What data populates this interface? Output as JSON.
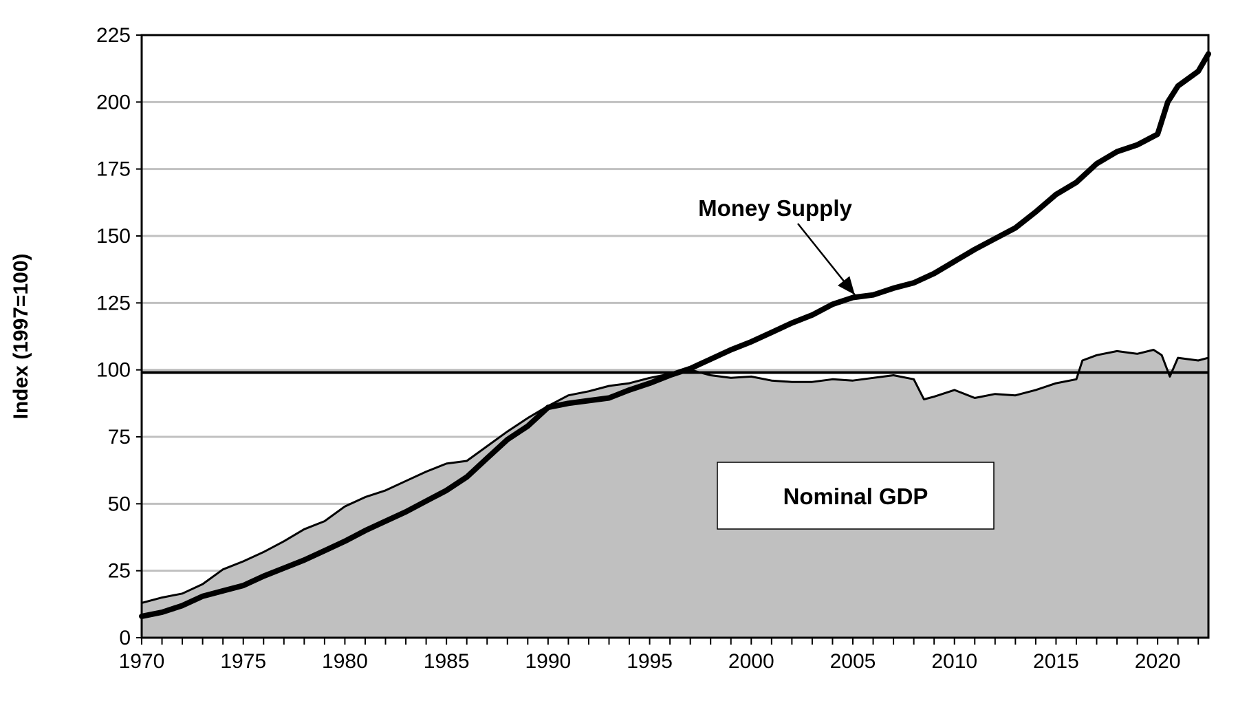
{
  "chart_data": {
    "type": "area",
    "title": "",
    "xlabel": "",
    "ylabel": "Index (1997=100)",
    "xlim": [
      1970,
      2022.5
    ],
    "ylim": [
      0,
      225
    ],
    "x_ticks": [
      "1970",
      "1975",
      "1980",
      "1985",
      "1990",
      "1995",
      "2000",
      "2005",
      "2010",
      "2015",
      "2020"
    ],
    "y_ticks": [
      "0",
      "25",
      "50",
      "75",
      "100",
      "125",
      "150",
      "175",
      "200",
      "225"
    ],
    "grid": "horizontal",
    "reference_line": 99,
    "annotations": [
      {
        "text": "Money Supply",
        "points_to": [
          2005.3,
          127
        ]
      },
      {
        "text": "Nominal GDP",
        "boxed": true
      }
    ],
    "colors": {
      "area_fill": "#c0c0c0",
      "gridline": "#c0c0c0",
      "line": "#000000"
    },
    "series": [
      {
        "name": "Nominal GDP",
        "style": "area",
        "x": [
          1970,
          1971,
          1972,
          1973,
          1974,
          1975,
          1976,
          1977,
          1978,
          1979,
          1980,
          1981,
          1982,
          1983,
          1984,
          1985,
          1986,
          1987,
          1988,
          1989,
          1990,
          1991,
          1992,
          1993,
          1994,
          1995,
          1996,
          1997,
          1998,
          1999,
          2000,
          2001,
          2002,
          2003,
          2004,
          2005,
          2006,
          2007,
          2008,
          2008.5,
          2009,
          2010,
          2011,
          2012,
          2013,
          2014,
          2015,
          2016,
          2016.3,
          2017,
          2018,
          2019,
          2019.8,
          2020.2,
          2020.6,
          2021,
          2021.5,
          2022,
          2022.5
        ],
        "y": [
          13,
          15,
          16.5,
          20,
          25.5,
          28.5,
          32,
          36,
          40.5,
          43.5,
          49,
          52.5,
          55,
          58.5,
          62,
          65,
          66,
          71.5,
          77,
          82,
          86.5,
          90.5,
          92,
          94,
          95,
          97,
          98.5,
          100,
          98,
          97,
          97.5,
          96,
          95.5,
          95.5,
          96.5,
          96,
          97,
          98,
          96.5,
          89,
          90,
          92.5,
          89.5,
          91,
          90.5,
          92.5,
          95,
          96.5,
          103.5,
          105.5,
          107,
          106,
          107.5,
          105.5,
          97.5,
          104.5,
          104,
          103.5,
          104.5
        ]
      },
      {
        "name": "Money Supply",
        "style": "line",
        "x": [
          1970,
          1971,
          1972,
          1973,
          1974,
          1975,
          1976,
          1977,
          1978,
          1979,
          1980,
          1981,
          1982,
          1983,
          1984,
          1985,
          1986,
          1987,
          1988,
          1989,
          1990,
          1991,
          1992,
          1993,
          1994,
          1995,
          1996,
          1997,
          1998,
          1999,
          2000,
          2001,
          2002,
          2003,
          2004,
          2005,
          2006,
          2007,
          2008,
          2009,
          2010,
          2011,
          2012,
          2013,
          2014,
          2015,
          2016,
          2017,
          2018,
          2019,
          2019.5,
          2020,
          2020.5,
          2021,
          2022,
          2022.5
        ],
        "y": [
          8,
          9.5,
          12,
          15.5,
          17.5,
          19.5,
          23,
          26,
          29,
          32.5,
          36,
          40,
          43.5,
          47,
          51,
          55,
          60,
          67,
          74,
          79,
          86,
          87.5,
          88.5,
          89.5,
          92.5,
          95,
          98,
          100.5,
          104,
          107.5,
          110.5,
          114,
          117.5,
          120.5,
          124.5,
          127,
          128,
          130.5,
          132.5,
          136,
          140.5,
          145,
          149,
          153,
          159,
          165.5,
          170,
          177,
          181.5,
          184,
          186,
          188,
          200,
          206,
          211.5,
          218
        ]
      }
    ]
  }
}
